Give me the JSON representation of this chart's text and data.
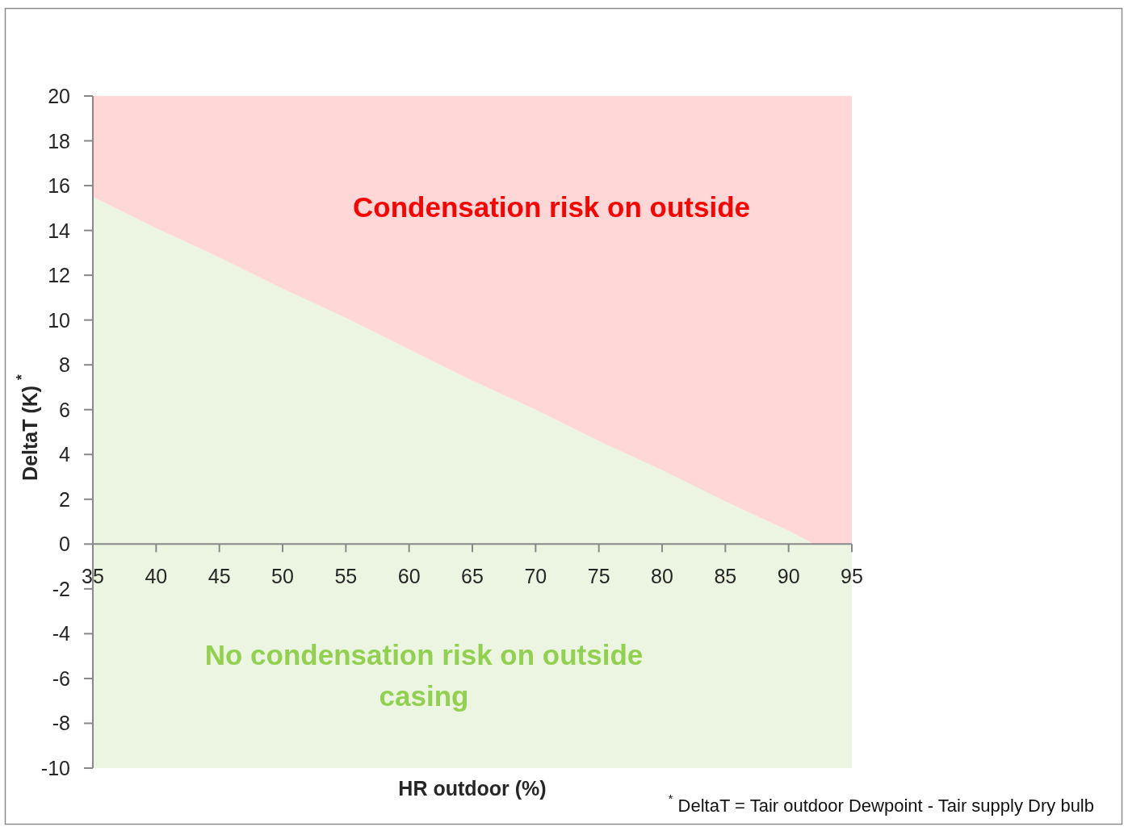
{
  "chart_data": {
    "type": "area",
    "stacked": true,
    "xlabel": "HR outdoor (%)",
    "ylabel": "DeltaT (K) $^{*}$",
    "x": [
      35,
      40,
      45,
      50,
      55,
      60,
      65,
      70,
      75,
      80,
      85,
      90,
      92,
      95
    ],
    "series": [
      {
        "color": "#ebf5e1",
        "values": [
          15.5,
          14.1,
          12.8,
          11.4,
          10.1,
          8.7,
          7.3,
          6.0,
          4.6,
          3.3,
          1.9,
          0.6,
          0,
          0
        ]
      },
      {
        "color": "#ffd7d7",
        "values": [
          4.5,
          5.9,
          7.2,
          8.6,
          9.9,
          11.3,
          12.7,
          14.0,
          15.4,
          16.7,
          18.1,
          19.4,
          20,
          20
        ]
      }
    ],
    "bands": [
      {
        "axis": "y",
        "from": -10,
        "to": 0,
        "color": "#ebf5e1"
      }
    ],
    "xlim": [
      35,
      95
    ],
    "xticks": [
      35,
      40,
      45,
      50,
      55,
      60,
      65,
      70,
      75,
      80,
      85,
      90,
      95
    ],
    "ylim": [
      -10,
      20
    ],
    "yticks": [
      -10,
      -8,
      -6,
      -4,
      -2,
      0,
      2,
      4,
      6,
      8,
      10,
      12,
      14,
      16,
      18,
      20
    ],
    "annotations": [
      "Condensation risk on outside",
      "No condensation risk on outside casing",
      "$^{*}$ DeltaT = Tair outdoor Dewpoint - Tair supply Dry bulb"
    ]
  }
}
